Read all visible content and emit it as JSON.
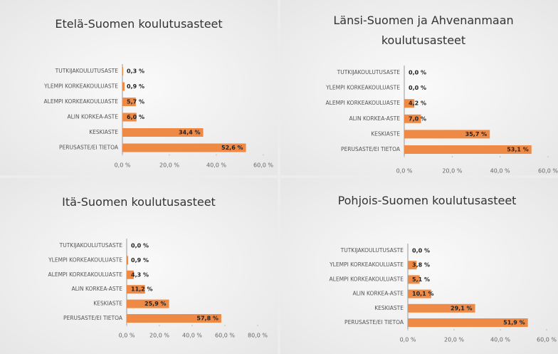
{
  "chart_data": [
    {
      "type": "bar",
      "orientation": "horizontal",
      "title": "Etelä-Suomen koulutusasteet",
      "categories": [
        "TUTKIJAKOULUTUSASTE",
        "YLEMPI KORKEAKOULUASTE",
        "ALEMPI KORKEAKOULUASTE",
        "ALIN KORKEA-ASTE",
        "KESKIASTE",
        "PERUSASTE/EI TIETOA"
      ],
      "values": [
        0.3,
        0.9,
        5.7,
        6.0,
        34.4,
        52.6
      ],
      "value_labels": [
        "0,3 %",
        "0,9 %",
        "5,7 %",
        "6,0 %",
        "34,4 %",
        "52,6 %"
      ],
      "color": "#ee8a45",
      "xlim": [
        0,
        60
      ],
      "xticks": [
        {
          "value": 0,
          "label": "0,0 %"
        },
        {
          "value": 20,
          "label": "20,0 %"
        },
        {
          "value": 40,
          "label": "40,0 %"
        },
        {
          "value": 60,
          "label": "60,0 %"
        }
      ]
    },
    {
      "type": "bar",
      "orientation": "horizontal",
      "title": "Länsi-Suomen ja Ahvenanmaan koulutusasteet",
      "categories": [
        "TUTKIJAKOULUTUSASTE",
        "YLEMPI KORKEAKOULUASTE",
        "ALEMPI KORKEAKOULUASTE",
        "ALIN KORKEA-ASTE",
        "KESKIASTE",
        "PERUSASTE/EI TIETOA"
      ],
      "values": [
        0.0,
        0.0,
        4.2,
        7.0,
        35.7,
        53.1
      ],
      "value_labels": [
        "0,0 %",
        "0,0 %",
        "4,2 %",
        "7,0 %",
        "35,7 %",
        "53,1 %"
      ],
      "color": "#ee8a45",
      "xlim": [
        0,
        60
      ],
      "xticks": [
        {
          "value": 0,
          "label": "0,0 %"
        },
        {
          "value": 20,
          "label": "20,0 %"
        },
        {
          "value": 40,
          "label": "40,0 %"
        },
        {
          "value": 60,
          "label": "60,0 %"
        }
      ]
    },
    {
      "type": "bar",
      "orientation": "horizontal",
      "title": "Itä-Suomen koulutusasteet",
      "categories": [
        "TUTKIJAKOULUTUSASTE",
        "YLEMPI KORKEAKOULUASTE",
        "ALEMPI KORKEAKOULUASTE",
        "ALIN KORKEA-ASTE",
        "KESKIASTE",
        "PERUSASTE/EI TIETOA"
      ],
      "values": [
        0.0,
        0.9,
        4.3,
        11.2,
        25.9,
        57.8
      ],
      "value_labels": [
        "0,0 %",
        "0,9 %",
        "4,3 %",
        "11,2 %",
        "25,9 %",
        "57,8 %"
      ],
      "color": "#ee8a45",
      "xlim": [
        0,
        80
      ],
      "xticks": [
        {
          "value": 0,
          "label": "0,0 %"
        },
        {
          "value": 20,
          "label": "20,0 %"
        },
        {
          "value": 40,
          "label": "40,0 %"
        },
        {
          "value": 60,
          "label": "60,0 %"
        },
        {
          "value": 80,
          "label": "80,0 %"
        }
      ]
    },
    {
      "type": "bar",
      "orientation": "horizontal",
      "title": "Pohjois-Suomen koulutusasteet",
      "categories": [
        "TUTKIJAKOULUTUSASTE",
        "YLEMPI KORKEAKOULUASTE",
        "ALEMPI KORKEAKOULUASTE",
        "ALIN KORKEA-ASTE",
        "KESKIASTE",
        "PERUSASTE/EI TIETOA"
      ],
      "values": [
        0.0,
        3.8,
        5.1,
        10.1,
        29.1,
        51.9
      ],
      "value_labels": [
        "0,0 %",
        "3,8 %",
        "5,1 %",
        "10,1 %",
        "29,1 %",
        "51,9 %"
      ],
      "color": "#ee8a45",
      "xlim": [
        0,
        60
      ],
      "xticks": [
        {
          "value": 0,
          "label": "0,0 %"
        },
        {
          "value": 20,
          "label": "20,0 %"
        },
        {
          "value": 40,
          "label": "40,0 %"
        },
        {
          "value": 60,
          "label": "60,0 %"
        }
      ]
    }
  ]
}
